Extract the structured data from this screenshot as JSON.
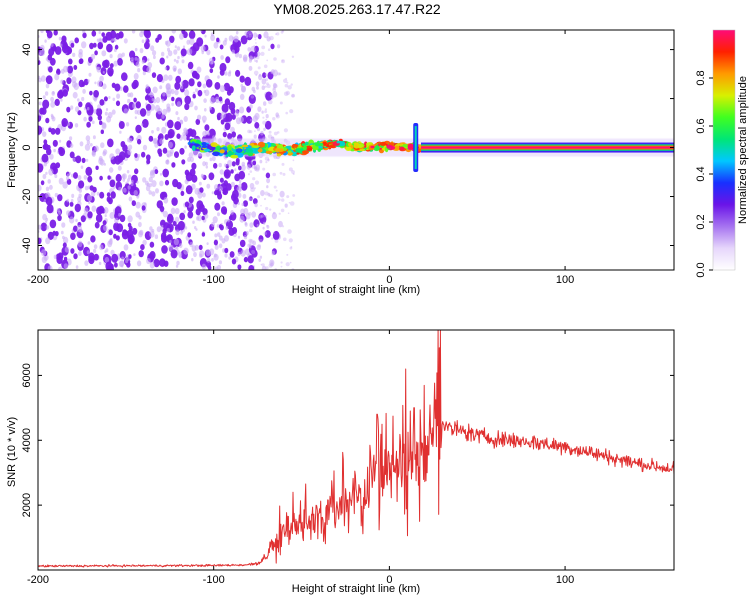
{
  "title": "YM08.2025.263.17.47.R22",
  "colors": {
    "snr_line": "#e03030",
    "speckle": "#7a1ee6",
    "speckle_light": "#c8a8f5",
    "colormap_stops": [
      "#ffffff",
      "#e6d6fb",
      "#a673f0",
      "#6a14e8",
      "#1830ff",
      "#00c8ff",
      "#00e676",
      "#40ff20",
      "#d8f000",
      "#ff9a00",
      "#ff2000",
      "#ff0a78"
    ]
  },
  "chart_data": [
    {
      "type": "heatmap",
      "title": "YM08.2025.263.17.47.R22",
      "xlabel": "Height of straight line (km)",
      "ylabel": "Frequency (Hz)",
      "xlim": [
        -200,
        162
      ],
      "ylim": [
        -50,
        48
      ],
      "xticks": [
        -200,
        -100,
        0,
        100
      ],
      "xtick_labels": [
        "-200",
        "-100",
        "0",
        "100"
      ],
      "yticks": [
        -40,
        -20,
        0,
        20,
        40
      ],
      "ytick_labels": [
        "-40",
        "-20",
        "0",
        "20",
        "40"
      ],
      "regions": [
        {
          "name": "noise",
          "x_range": [
            -200,
            -80
          ],
          "f_range": [
            -50,
            48
          ],
          "amplitude": 0.15
        },
        {
          "name": "dominant-line",
          "x_range": [
            -113,
            162
          ],
          "center_freq": 0,
          "amplitude": 1.0
        },
        {
          "name": "broadband-spike",
          "x_value": 15,
          "f_range": [
            -10,
            10
          ],
          "amplitude": 0.35
        }
      ],
      "colorbar": {
        "label": "Normalized spectral amplitude",
        "range": [
          0,
          1
        ],
        "ticks": [
          0.0,
          0.2,
          0.4,
          0.6,
          0.8
        ],
        "tick_labels": [
          "0.0",
          "0.2",
          "0.4",
          "0.6",
          "0.8"
        ]
      }
    },
    {
      "type": "line",
      "xlabel": "Height of straight line (km)",
      "ylabel": "SNR (10 * v/v)",
      "xlim": [
        -200,
        162
      ],
      "ylim": [
        0,
        7400
      ],
      "xticks": [
        -200,
        -100,
        0,
        100
      ],
      "xtick_labels": [
        "-200",
        "-100",
        "0",
        "100"
      ],
      "yticks": [
        2000,
        4000,
        6000
      ],
      "ytick_labels": [
        "2000",
        "4000",
        "6000"
      ],
      "series": [
        {
          "name": "SNR",
          "x": [
            -200,
            -150,
            -100,
            -80,
            -73,
            -68,
            -60,
            -50,
            -40,
            -30,
            -20,
            -10,
            0,
            10,
            20,
            25,
            28,
            30,
            35,
            40,
            50,
            60,
            70,
            80,
            100,
            120,
            140,
            162
          ],
          "y": [
            120,
            130,
            140,
            160,
            250,
            650,
            1150,
            1500,
            1650,
            1900,
            2300,
            2700,
            3000,
            3300,
            3600,
            4150,
            5000,
            4450,
            4350,
            4300,
            4150,
            4050,
            4000,
            3950,
            3800,
            3550,
            3300,
            3100
          ],
          "notable_peaks": [
            {
              "x": 29,
              "y": 7400
            },
            {
              "x": 14,
              "y": 5000
            },
            {
              "x": -7,
              "y": 4800
            }
          ]
        }
      ]
    }
  ]
}
